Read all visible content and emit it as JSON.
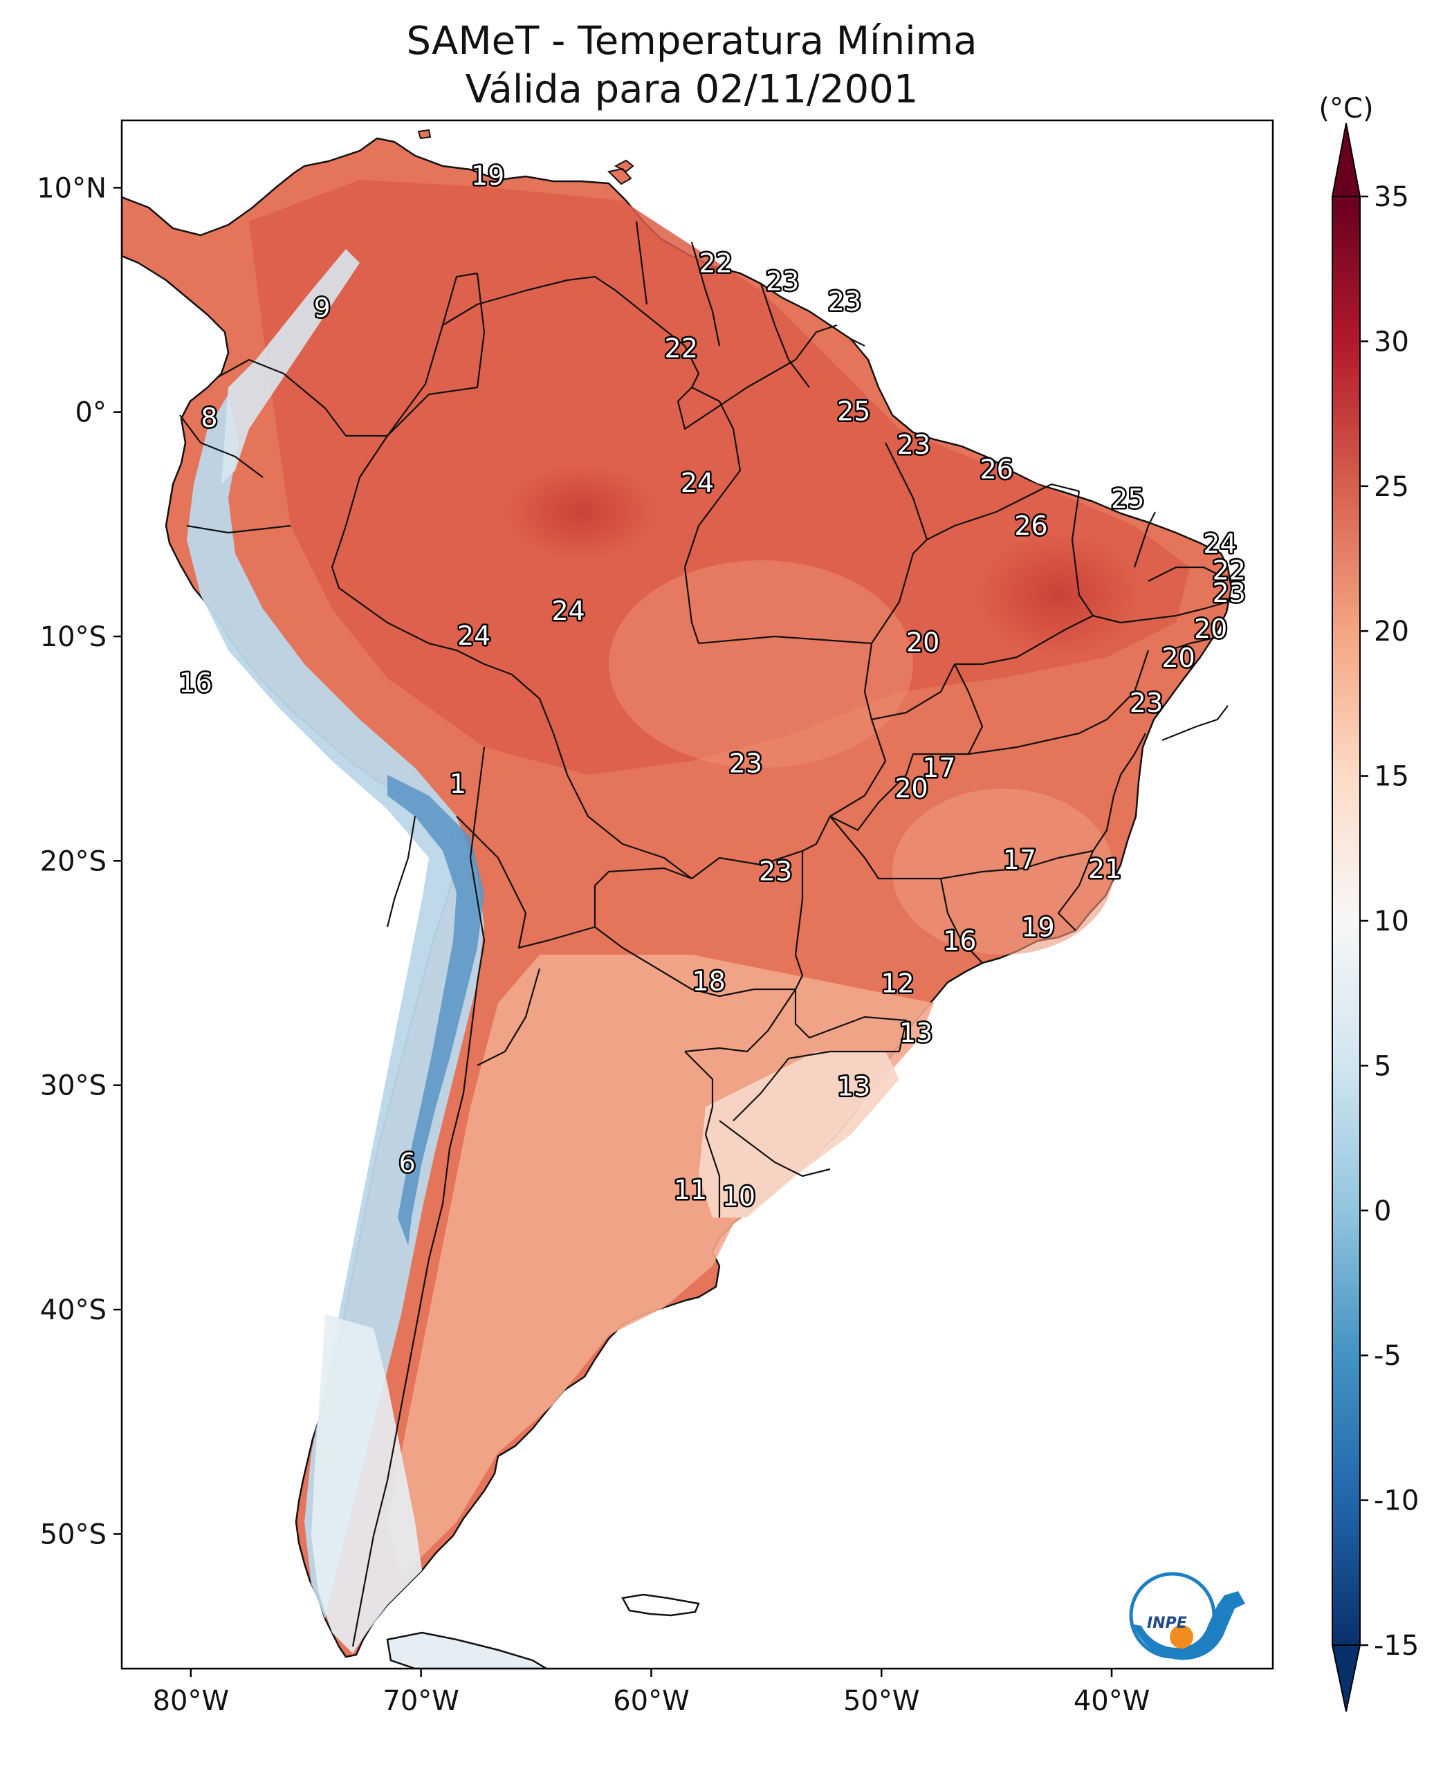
{
  "title": {
    "line1": "SAMeT - Temperatura Mínima",
    "line2": "Válida para 02/11/2001"
  },
  "map": {
    "lon_range": [
      -83,
      -33
    ],
    "lat_range": [
      -56,
      13
    ],
    "lat_ticks": [
      {
        "lat": 10,
        "label": "10°N"
      },
      {
        "lat": 0,
        "label": "0°"
      },
      {
        "lat": -10,
        "label": "10°S"
      },
      {
        "lat": -20,
        "label": "20°S"
      },
      {
        "lat": -30,
        "label": "30°S"
      },
      {
        "lat": -40,
        "label": "40°S"
      },
      {
        "lat": -50,
        "label": "50°S"
      }
    ],
    "lon_ticks": [
      {
        "lon": -80,
        "label": "80°W"
      },
      {
        "lon": -70,
        "label": "70°W"
      },
      {
        "lon": -60,
        "label": "60°W"
      },
      {
        "lon": -50,
        "label": "50°W"
      },
      {
        "lon": -40,
        "label": "40°W"
      }
    ],
    "station_labels": [
      {
        "lon": -67.1,
        "lat": 10.6,
        "value": "19"
      },
      {
        "lon": -57.2,
        "lat": 6.7,
        "value": "22"
      },
      {
        "lon": -54.3,
        "lat": 5.9,
        "value": "23"
      },
      {
        "lon": -51.6,
        "lat": 5.0,
        "value": "23"
      },
      {
        "lon": -74.3,
        "lat": 4.7,
        "value": "9"
      },
      {
        "lon": -58.7,
        "lat": 2.9,
        "value": "22"
      },
      {
        "lon": -79.2,
        "lat": -0.2,
        "value": "8"
      },
      {
        "lon": -51.2,
        "lat": 0.1,
        "value": "25"
      },
      {
        "lon": -48.6,
        "lat": -1.4,
        "value": "23"
      },
      {
        "lon": -45.0,
        "lat": -2.5,
        "value": "26"
      },
      {
        "lon": -58.0,
        "lat": -3.1,
        "value": "24"
      },
      {
        "lon": -39.3,
        "lat": -3.8,
        "value": "25"
      },
      {
        "lon": -43.5,
        "lat": -5.0,
        "value": "26"
      },
      {
        "lon": -35.3,
        "lat": -5.8,
        "value": "24"
      },
      {
        "lon": -34.9,
        "lat": -7.0,
        "value": "22"
      },
      {
        "lon": -34.9,
        "lat": -8.0,
        "value": "23"
      },
      {
        "lon": -63.6,
        "lat": -8.8,
        "value": "24"
      },
      {
        "lon": -35.7,
        "lat": -9.6,
        "value": "20"
      },
      {
        "lon": -67.7,
        "lat": -9.9,
        "value": "24"
      },
      {
        "lon": -48.2,
        "lat": -10.2,
        "value": "20"
      },
      {
        "lon": -37.1,
        "lat": -10.9,
        "value": "20"
      },
      {
        "lon": -79.8,
        "lat": -12.0,
        "value": "16"
      },
      {
        "lon": -38.5,
        "lat": -12.9,
        "value": "23"
      },
      {
        "lon": -55.9,
        "lat": -15.6,
        "value": "23"
      },
      {
        "lon": -47.5,
        "lat": -15.8,
        "value": "17"
      },
      {
        "lon": -68.4,
        "lat": -16.5,
        "value": "1"
      },
      {
        "lon": -48.7,
        "lat": -16.7,
        "value": "20"
      },
      {
        "lon": -44.0,
        "lat": -19.9,
        "value": "17"
      },
      {
        "lon": -40.3,
        "lat": -20.3,
        "value": "21"
      },
      {
        "lon": -54.6,
        "lat": -20.4,
        "value": "23"
      },
      {
        "lon": -43.2,
        "lat": -22.9,
        "value": "19"
      },
      {
        "lon": -46.6,
        "lat": -23.5,
        "value": "16"
      },
      {
        "lon": -57.5,
        "lat": -25.3,
        "value": "18"
      },
      {
        "lon": -49.3,
        "lat": -25.4,
        "value": "12"
      },
      {
        "lon": -48.5,
        "lat": -27.6,
        "value": "13"
      },
      {
        "lon": -51.2,
        "lat": -30.0,
        "value": "13"
      },
      {
        "lon": -70.6,
        "lat": -33.4,
        "value": "6"
      },
      {
        "lon": -58.3,
        "lat": -34.6,
        "value": "11"
      },
      {
        "lon": -56.2,
        "lat": -34.9,
        "value": "10"
      }
    ]
  },
  "colorbar": {
    "unit": "(°C)",
    "min": -15,
    "max": 35,
    "ticks": [
      "35",
      "30",
      "25",
      "20",
      "15",
      "10",
      "5",
      "0",
      "-5",
      "-10",
      "-15"
    ]
  },
  "logo": {
    "text": "INPE"
  },
  "colors": {
    "ocean": "#ffffff",
    "warm_land": "#e0644c",
    "hot_land": "#d04a3c",
    "mild_land": "#f0a888",
    "cool_land": "#f8d8c8",
    "cold_land": "#c8ddec",
    "freezing": "#3a78b8",
    "logo_blue": "#1e7fc2",
    "logo_orange": "#f28c1e"
  }
}
